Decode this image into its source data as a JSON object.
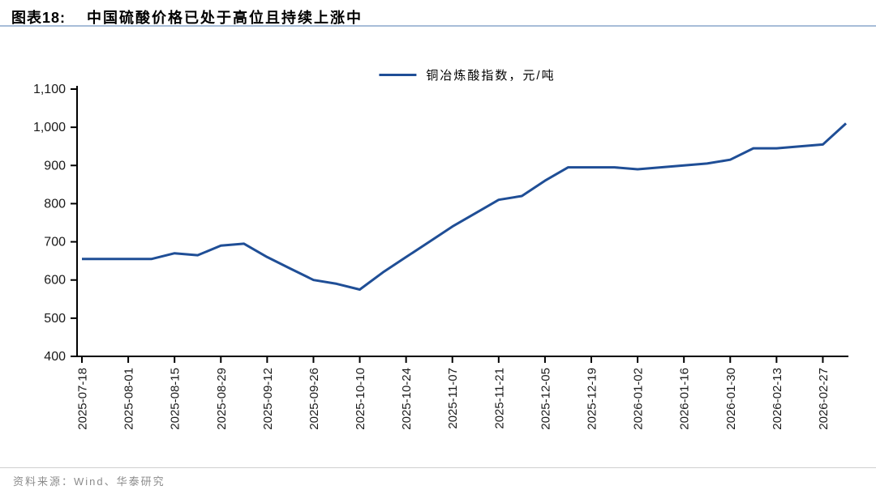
{
  "page": {
    "title_prefix": "图表18:",
    "title_text": "中国硫酸价格已处于高位且持续上涨中",
    "source_text": "资料来源：Wind、华泰研究"
  },
  "colors": {
    "line": "#1f4e96",
    "axis": "#000000",
    "tick_label": "#1a1a1a",
    "title_underline": "#a7bdd8",
    "footer_rule": "#cfcfcf",
    "footer_text": "#8c8c8c"
  },
  "chart_data": {
    "type": "line",
    "title": "",
    "legend_label": "铜冶炼酸指数，元/吨",
    "legend_position": "top-center",
    "grid": false,
    "ylim": [
      400,
      1100
    ],
    "y_ticks": [
      400,
      500,
      600,
      700,
      800,
      900,
      1000,
      1100
    ],
    "y_tick_labels": [
      "400",
      "500",
      "600",
      "700",
      "800",
      "900",
      "1,000",
      "1,100"
    ],
    "x_tick_rotation": 90,
    "x_tick_every": 2,
    "x": [
      "2025-07-18",
      "2025-07-25",
      "2025-08-01",
      "2025-08-08",
      "2025-08-15",
      "2025-08-22",
      "2025-08-29",
      "2025-09-05",
      "2025-09-12",
      "2025-09-19",
      "2025-09-26",
      "2025-10-03",
      "2025-10-10",
      "2025-10-17",
      "2025-10-24",
      "2025-10-31",
      "2025-11-07",
      "2025-11-14",
      "2025-11-21",
      "2025-11-28",
      "2025-12-05",
      "2025-12-12",
      "2025-12-19",
      "2025-12-26",
      "2026-01-02",
      "2026-01-09",
      "2026-01-16",
      "2026-01-23",
      "2026-01-30",
      "2026-02-06",
      "2026-02-13",
      "2026-02-20",
      "2026-02-27",
      "2026-03-06"
    ],
    "x_tick_labels": [
      "2025-07-18",
      "2025-08-01",
      "2025-08-15",
      "2025-08-29",
      "2025-09-12",
      "2025-09-26",
      "2025-10-10",
      "2025-10-24",
      "2025-11-07",
      "2025-11-21",
      "2025-12-05",
      "2025-12-19",
      "2026-01-02",
      "2026-01-16",
      "2026-01-30",
      "2026-02-13",
      "2026-02-27"
    ],
    "series": [
      {
        "name": "铜冶炼酸指数，元/吨",
        "values": [
          655,
          655,
          655,
          655,
          670,
          665,
          690,
          695,
          660,
          630,
          600,
          590,
          575,
          620,
          660,
          700,
          740,
          775,
          810,
          820,
          860,
          895,
          895,
          895,
          890,
          895,
          900,
          905,
          915,
          945,
          945,
          950,
          955,
          1010
        ]
      }
    ]
  }
}
